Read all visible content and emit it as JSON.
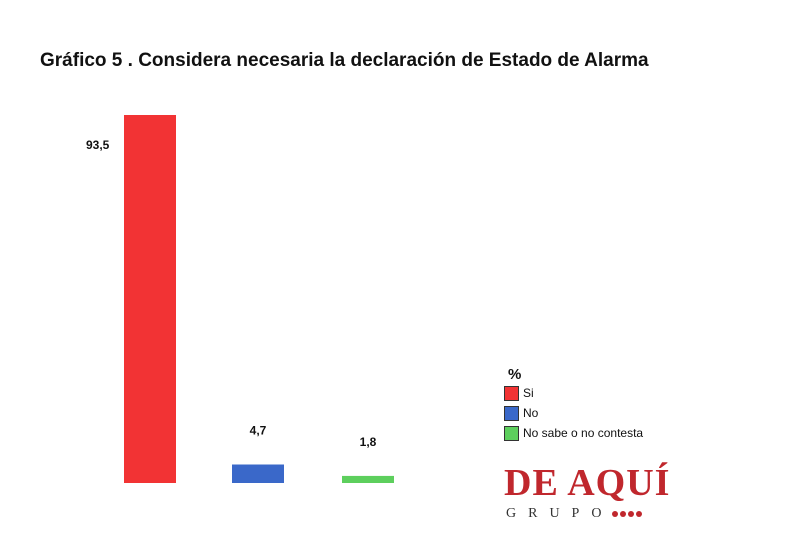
{
  "chart_data": {
    "type": "bar",
    "title": "Gráfico 5 . Considera necesaria la declaración de Estado de Alarma",
    "categories": [
      "Si",
      "No",
      "No sabe o no contesta"
    ],
    "values": [
      93.5,
      4.7,
      1.8
    ],
    "value_labels": [
      "93,5",
      "4,7",
      "1,8"
    ],
    "colors": [
      "#f23334",
      "#3a68c9",
      "#5dcf5d"
    ],
    "ylim": [
      0,
      93.5
    ],
    "grid": false,
    "legend": {
      "title": "%",
      "placement": "bottom-right",
      "entries": [
        "Si",
        "No",
        "No sabe o no contesta"
      ]
    }
  },
  "logo": {
    "main": "DE AQUÍ",
    "sub": "GRUPO",
    "color": "#c0272d"
  }
}
